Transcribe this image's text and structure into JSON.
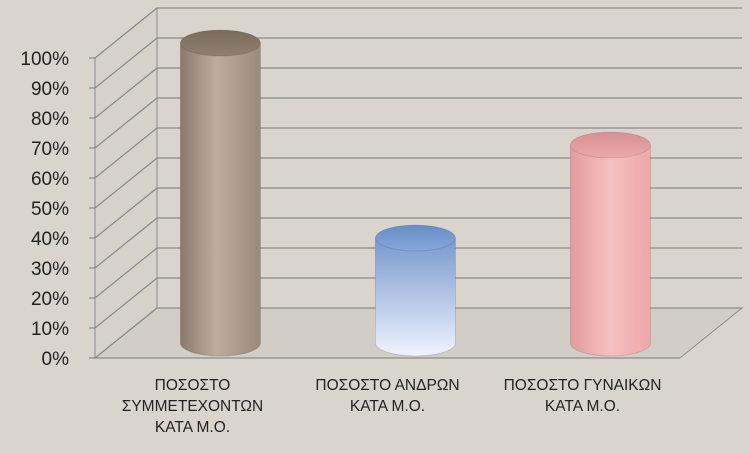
{
  "chart_data": {
    "type": "bar",
    "style": "3d-cylinder",
    "categories": [
      [
        "ΠΟΣΟΣΤΟ",
        "ΣΥΜΜΕΤΕΧΟΝΤΩΝ",
        "ΚΑΤΑ Μ.Ο."
      ],
      [
        "ΠΟΣΟΣΤΟ ΑΝΔΡΩΝ",
        "ΚΑΤΑ Μ.Ο."
      ],
      [
        "ΠΟΣΟΣΤΟ ΓΥΝΑΙΚΩΝ",
        "ΚΑΤΑ Μ.Ο."
      ]
    ],
    "values": [
      100,
      35,
      66
    ],
    "colors": [
      "#a09080",
      "#88aadd",
      "#eeaaaa"
    ],
    "ylim": [
      0,
      100
    ],
    "y_ticks": [
      "0%",
      "10%",
      "20%",
      "30%",
      "40%",
      "50%",
      "60%",
      "70%",
      "80%",
      "90%",
      "100%"
    ],
    "grid": true,
    "legend": "none",
    "title": "",
    "xlabel": "",
    "ylabel": ""
  }
}
